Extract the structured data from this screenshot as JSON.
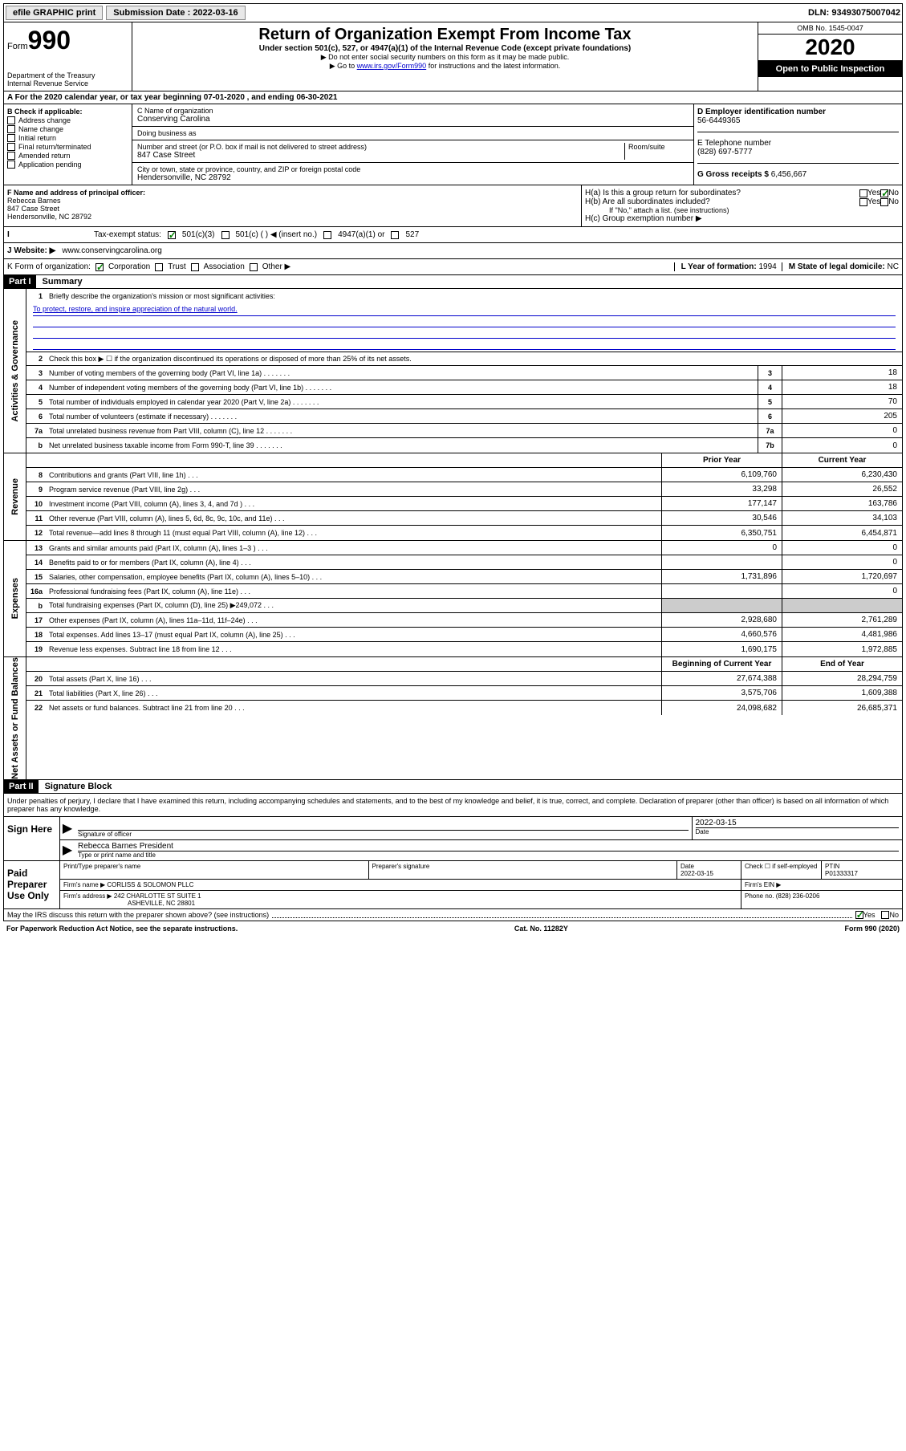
{
  "topbar": {
    "efile_label": "efile GRAPHIC print",
    "submission_label": "Submission Date : 2022-03-16",
    "dln": "DLN: 93493075007042"
  },
  "header": {
    "form_word": "Form",
    "form_num": "990",
    "dept": "Department of the Treasury",
    "irs": "Internal Revenue Service",
    "title": "Return of Organization Exempt From Income Tax",
    "subtitle": "Under section 501(c), 527, or 4947(a)(1) of the Internal Revenue Code (except private foundations)",
    "instr1": "▶ Do not enter social security numbers on this form as it may be made public.",
    "instr2_a": "▶ Go to ",
    "instr2_link": "www.irs.gov/Form990",
    "instr2_b": " for instructions and the latest information.",
    "omb": "OMB No. 1545-0047",
    "year": "2020",
    "open": "Open to Public Inspection"
  },
  "row_a": "A For the 2020 calendar year, or tax year beginning 07-01-2020    , and ending 06-30-2021",
  "col_b": {
    "header": "B Check if applicable:",
    "items": [
      "Address change",
      "Name change",
      "Initial return",
      "Final return/terminated",
      "Amended return",
      "Application pending"
    ]
  },
  "col_c": {
    "name_label": "C Name of organization",
    "name": "Conserving Carolina",
    "dba_label": "Doing business as",
    "street_label": "Number and street (or P.O. box if mail is not delivered to street address)",
    "room_label": "Room/suite",
    "street": "847 Case Street",
    "city_label": "City or town, state or province, country, and ZIP or foreign postal code",
    "city": "Hendersonville, NC  28792"
  },
  "col_d": {
    "ein_label": "D Employer identification number",
    "ein": "56-6449365",
    "phone_label": "E Telephone number",
    "phone": "(828) 697-5777",
    "gross_label": "G Gross receipts $ ",
    "gross": "6,456,667"
  },
  "col_f": {
    "label": "F  Name and address of principal officer:",
    "name": "Rebecca Barnes",
    "addr1": "847 Case Street",
    "addr2": "Hendersonville, NC  28792"
  },
  "col_h": {
    "ha": "H(a)  Is this a group return for subordinates?",
    "hb": "H(b)  Are all subordinates included?",
    "hb_note": "If \"No,\" attach a list. (see instructions)",
    "hc": "H(c)  Group exemption number ▶",
    "yes": "Yes",
    "no": "No"
  },
  "row_i": {
    "label": "Tax-exempt status:",
    "opt1": "501(c)(3)",
    "opt2": "501(c) (   ) ◀ (insert no.)",
    "opt3": "4947(a)(1) or",
    "opt4": "527"
  },
  "row_j": {
    "label": "J   Website: ▶",
    "val": "www.conservingcarolina.org"
  },
  "row_k": {
    "label": "K Form of organization:",
    "opts": [
      "Corporation",
      "Trust",
      "Association",
      "Other ▶"
    ],
    "l_label": "L Year of formation: ",
    "l_val": "1994",
    "m_label": "M State of legal domicile: ",
    "m_val": "NC"
  },
  "part1": {
    "header": "Part I",
    "title": "Summary",
    "side1": "Activities & Governance",
    "side2": "Revenue",
    "side3": "Expenses",
    "side4": "Net Assets or Fund Balances",
    "l1": "Briefly describe the organization's mission or most significant activities:",
    "mission": "To protect, restore, and inspire appreciation of the natural world.",
    "l2": "Check this box ▶ ☐  if the organization discontinued its operations or disposed of more than 25% of its net assets.",
    "lines_gov": [
      {
        "n": "3",
        "t": "Number of voting members of the governing body (Part VI, line 1a)",
        "b": "3",
        "v": "18"
      },
      {
        "n": "4",
        "t": "Number of independent voting members of the governing body (Part VI, line 1b)",
        "b": "4",
        "v": "18"
      },
      {
        "n": "5",
        "t": "Total number of individuals employed in calendar year 2020 (Part V, line 2a)",
        "b": "5",
        "v": "70"
      },
      {
        "n": "6",
        "t": "Total number of volunteers (estimate if necessary)",
        "b": "6",
        "v": "205"
      },
      {
        "n": "7a",
        "t": "Total unrelated business revenue from Part VIII, column (C), line 12",
        "b": "7a",
        "v": "0"
      },
      {
        "n": "b",
        "t": "Net unrelated business taxable income from Form 990-T, line 39",
        "b": "7b",
        "v": "0"
      }
    ],
    "col_prior": "Prior Year",
    "col_current": "Current Year",
    "lines_rev": [
      {
        "n": "8",
        "t": "Contributions and grants (Part VIII, line 1h)",
        "p": "6,109,760",
        "c": "6,230,430"
      },
      {
        "n": "9",
        "t": "Program service revenue (Part VIII, line 2g)",
        "p": "33,298",
        "c": "26,552"
      },
      {
        "n": "10",
        "t": "Investment income (Part VIII, column (A), lines 3, 4, and 7d )",
        "p": "177,147",
        "c": "163,786"
      },
      {
        "n": "11",
        "t": "Other revenue (Part VIII, column (A), lines 5, 6d, 8c, 9c, 10c, and 11e)",
        "p": "30,546",
        "c": "34,103"
      },
      {
        "n": "12",
        "t": "Total revenue—add lines 8 through 11 (must equal Part VIII, column (A), line 12)",
        "p": "6,350,751",
        "c": "6,454,871"
      }
    ],
    "lines_exp": [
      {
        "n": "13",
        "t": "Grants and similar amounts paid (Part IX, column (A), lines 1–3 )",
        "p": "0",
        "c": "0"
      },
      {
        "n": "14",
        "t": "Benefits paid to or for members (Part IX, column (A), line 4)",
        "p": "",
        "c": "0"
      },
      {
        "n": "15",
        "t": "Salaries, other compensation, employee benefits (Part IX, column (A), lines 5–10)",
        "p": "1,731,896",
        "c": "1,720,697"
      },
      {
        "n": "16a",
        "t": "Professional fundraising fees (Part IX, column (A), line 11e)",
        "p": "",
        "c": "0"
      },
      {
        "n": "b",
        "t": "Total fundraising expenses (Part IX, column (D), line 25) ▶249,072",
        "p": "",
        "c": "",
        "shade": true
      },
      {
        "n": "17",
        "t": "Other expenses (Part IX, column (A), lines 11a–11d, 11f–24e)",
        "p": "2,928,680",
        "c": "2,761,289"
      },
      {
        "n": "18",
        "t": "Total expenses. Add lines 13–17 (must equal Part IX, column (A), line 25)",
        "p": "4,660,576",
        "c": "4,481,986"
      },
      {
        "n": "19",
        "t": "Revenue less expenses. Subtract line 18 from line 12",
        "p": "1,690,175",
        "c": "1,972,885"
      }
    ],
    "col_begin": "Beginning of Current Year",
    "col_end": "End of Year",
    "lines_net": [
      {
        "n": "20",
        "t": "Total assets (Part X, line 16)",
        "p": "27,674,388",
        "c": "28,294,759"
      },
      {
        "n": "21",
        "t": "Total liabilities (Part X, line 26)",
        "p": "3,575,706",
        "c": "1,609,388"
      },
      {
        "n": "22",
        "t": "Net assets or fund balances. Subtract line 21 from line 20",
        "p": "24,098,682",
        "c": "26,685,371"
      }
    ]
  },
  "part2": {
    "header": "Part II",
    "title": "Signature Block",
    "perjury": "Under penalties of perjury, I declare that I have examined this return, including accompanying schedules and statements, and to the best of my knowledge and belief, it is true, correct, and complete. Declaration of preparer (other than officer) is based on all information of which preparer has any knowledge."
  },
  "sign": {
    "label": "Sign Here",
    "officer_sig": "Signature of officer",
    "date_label": "Date",
    "date": "2022-03-15",
    "officer_name": "Rebecca Barnes  President",
    "name_label": "Type or print name and title"
  },
  "preparer": {
    "label": "Paid Preparer Use Only",
    "name_label": "Print/Type preparer's name",
    "sig_label": "Preparer's signature",
    "date_label": "Date",
    "date": "2022-03-15",
    "check_label": "Check ☐ if self-employed",
    "ptin_label": "PTIN",
    "ptin": "P01333317",
    "firm_name_label": "Firm's name    ▶",
    "firm_name": "CORLISS & SOLOMON PLLC",
    "firm_ein_label": "Firm's EIN ▶",
    "firm_addr_label": "Firm's address ▶",
    "firm_addr1": "242 CHARLOTTE ST SUITE 1",
    "firm_addr2": "ASHEVILLE, NC  28801",
    "phone_label": "Phone no. ",
    "phone": "(828) 236-0206"
  },
  "footer": {
    "discuss": "May the IRS discuss this return with the preparer shown above? (see instructions)",
    "yes": "Yes",
    "no": "No",
    "paperwork": "For Paperwork Reduction Act Notice, see the separate instructions.",
    "cat": "Cat. No. 11282Y",
    "form": "Form 990 (2020)"
  }
}
